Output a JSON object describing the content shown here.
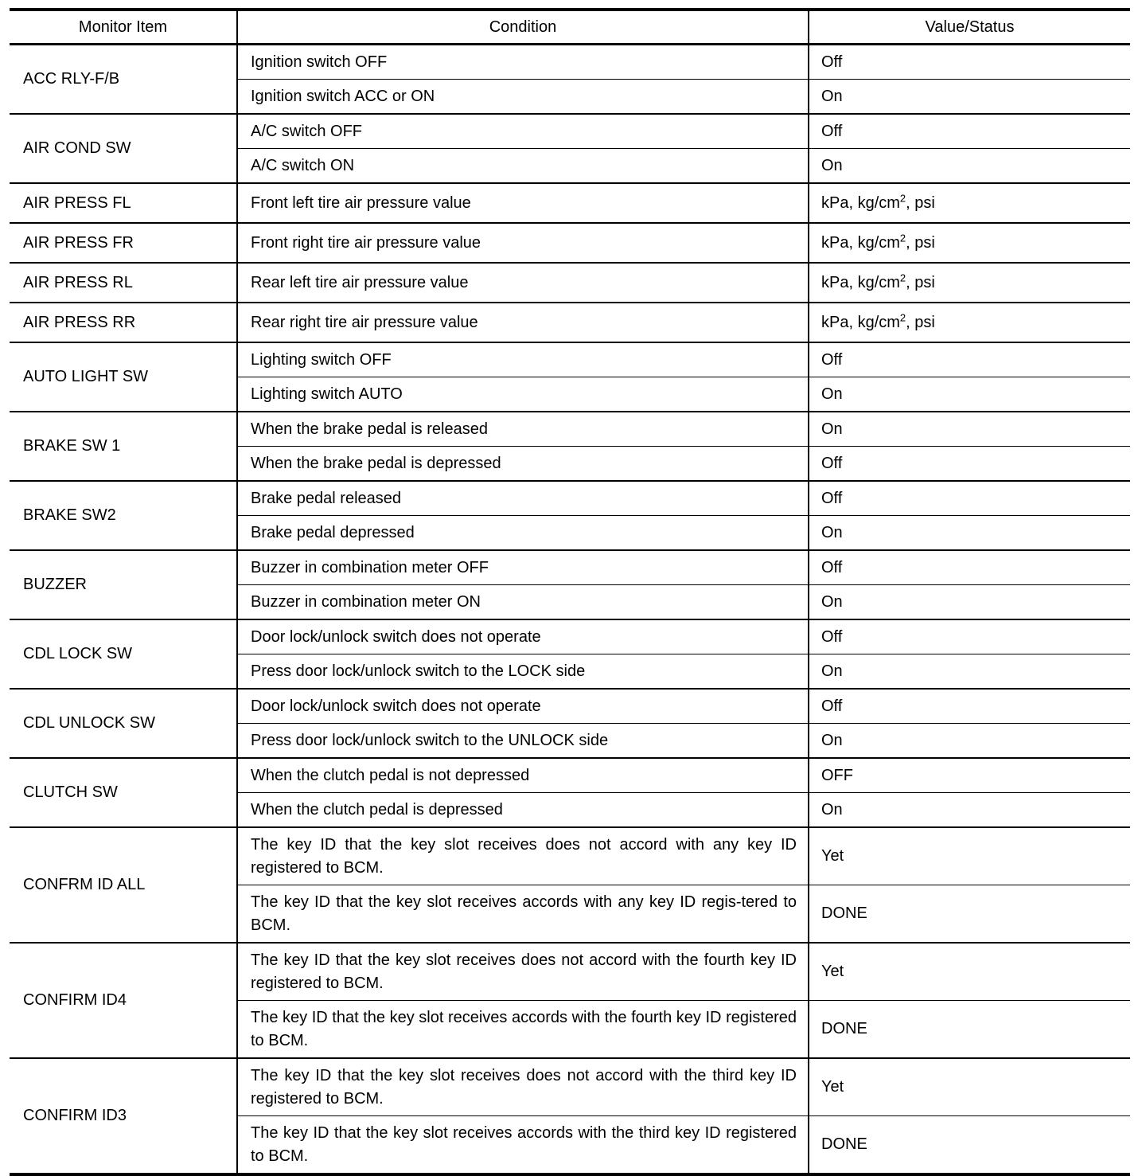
{
  "headers": [
    "Monitor Item",
    "Condition",
    "Value/Status"
  ],
  "rows": [
    {
      "item": "ACC RLY-F/B",
      "subs": [
        {
          "condition": "Ignition switch OFF",
          "value": "Off"
        },
        {
          "condition": "Ignition switch ACC or ON",
          "value": "On"
        }
      ]
    },
    {
      "item": "AIR COND SW",
      "subs": [
        {
          "condition": "A/C switch OFF",
          "value": "Off"
        },
        {
          "condition": "A/C switch ON",
          "value": "On"
        }
      ]
    },
    {
      "item": "AIR PRESS FL",
      "subs": [
        {
          "condition": "Front left tire air pressure value",
          "value": "kPa, kg/cm",
          "sup": "2",
          "suffix": ", psi"
        }
      ]
    },
    {
      "item": "AIR PRESS FR",
      "subs": [
        {
          "condition": "Front right tire air pressure value",
          "value": "kPa, kg/cm",
          "sup": "2",
          "suffix": ", psi"
        }
      ]
    },
    {
      "item": "AIR PRESS RL",
      "subs": [
        {
          "condition": "Rear left tire air pressure value",
          "value": "kPa, kg/cm",
          "sup": "2",
          "suffix": ", psi"
        }
      ]
    },
    {
      "item": "AIR PRESS RR",
      "subs": [
        {
          "condition": "Rear right tire air pressure value",
          "value": "kPa, kg/cm",
          "sup": "2",
          "suffix": ", psi"
        }
      ]
    },
    {
      "item": "AUTO LIGHT SW",
      "subs": [
        {
          "condition": "Lighting switch OFF",
          "value": "Off"
        },
        {
          "condition": "Lighting switch AUTO",
          "value": "On"
        }
      ]
    },
    {
      "item": "BRAKE SW 1",
      "subs": [
        {
          "condition": "When the brake pedal is released",
          "value": "On"
        },
        {
          "condition": "When the brake pedal is depressed",
          "value": "Off"
        }
      ]
    },
    {
      "item": "BRAKE SW2",
      "subs": [
        {
          "condition": "Brake pedal released",
          "value": "Off"
        },
        {
          "condition": "Brake pedal depressed",
          "value": "On"
        }
      ]
    },
    {
      "item": "BUZZER",
      "subs": [
        {
          "condition": "Buzzer in combination meter OFF",
          "value": "Off"
        },
        {
          "condition": "Buzzer in combination meter ON",
          "value": "On"
        }
      ]
    },
    {
      "item": "CDL LOCK SW",
      "subs": [
        {
          "condition": "Door lock/unlock switch does not operate",
          "value": "Off"
        },
        {
          "condition": "Press door lock/unlock switch to the LOCK side",
          "value": "On"
        }
      ]
    },
    {
      "item": "CDL UNLOCK SW",
      "subs": [
        {
          "condition": "Door lock/unlock switch does not operate",
          "value": "Off"
        },
        {
          "condition": "Press door lock/unlock switch to the UNLOCK side",
          "value": "On"
        }
      ]
    },
    {
      "item": "CLUTCH SW",
      "subs": [
        {
          "condition": "When the clutch pedal is not depressed",
          "value": "OFF"
        },
        {
          "condition": "When the clutch pedal is depressed",
          "value": "On"
        }
      ]
    },
    {
      "item": "CONFRM ID ALL",
      "subs": [
        {
          "condition": "The key ID that the key slot receives does not accord with any key ID registered to BCM.",
          "value": "Yet"
        },
        {
          "condition": "The key ID that the key slot receives accords with any key ID regis-tered to BCM.",
          "value": "DONE"
        }
      ]
    },
    {
      "item": "CONFIRM ID4",
      "subs": [
        {
          "condition": "The key ID that the key slot receives does not accord with the fourth key ID registered to BCM.",
          "value": "Yet"
        },
        {
          "condition": "The key ID that the key slot receives accords with the fourth key ID registered to BCM.",
          "value": "DONE"
        }
      ]
    },
    {
      "item": "CONFIRM ID3",
      "subs": [
        {
          "condition": "The key ID that the key slot receives does not accord with the third key ID registered to BCM.",
          "value": "Yet"
        },
        {
          "condition": "The key ID that the key slot receives accords with the third key ID registered to BCM.",
          "value": "DONE"
        }
      ]
    }
  ]
}
